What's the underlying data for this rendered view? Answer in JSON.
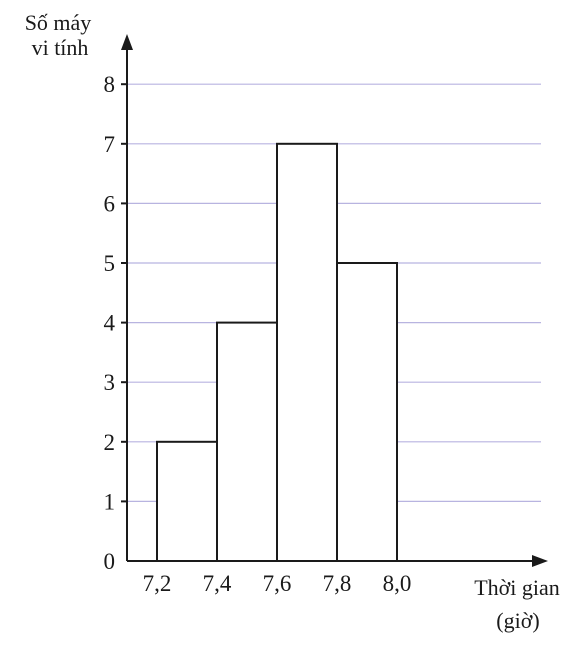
{
  "chart_data": {
    "type": "bar",
    "subtype": "histogram",
    "ylabel_lines": [
      "Số máy",
      "vi tính"
    ],
    "xlabel_lines": [
      "Thời gian",
      "(giờ)"
    ],
    "x_ticks": [
      "7,2",
      "7,4",
      "7,6",
      "7,8",
      "8,0"
    ],
    "y_ticks": [
      "0",
      "1",
      "2",
      "3",
      "4",
      "5",
      "6",
      "7",
      "8"
    ],
    "bins": [
      {
        "from": 7.2,
        "to": 7.4,
        "value": 2
      },
      {
        "from": 7.4,
        "to": 7.6,
        "value": 4
      },
      {
        "from": 7.6,
        "to": 7.8,
        "value": 7
      },
      {
        "from": 7.8,
        "to": 8.0,
        "value": 5
      }
    ],
    "ylim": [
      0,
      8
    ],
    "grid": true,
    "colors": {
      "axis": "#1a1a1a",
      "grid": "#b8b4e0",
      "bar_fill": "#ffffff",
      "bar_stroke": "#1a1a1a"
    }
  }
}
